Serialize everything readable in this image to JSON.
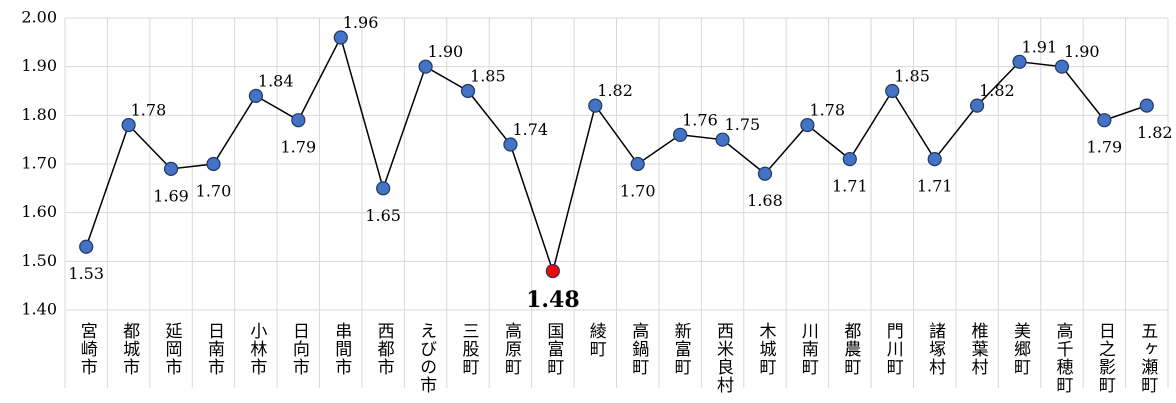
{
  "chart_data": {
    "type": "line",
    "categories": [
      "宮崎市",
      "都城市",
      "延岡市",
      "日南市",
      "小林市",
      "日向市",
      "串間市",
      "西都市",
      "えびの市",
      "三股町",
      "高原町",
      "国富町",
      "綾町",
      "高鍋町",
      "新富町",
      "西米良村",
      "木城町",
      "川南町",
      "都農町",
      "門川町",
      "諸塚村",
      "椎葉村",
      "美郷町",
      "高千穂町",
      "日之影町",
      "五ヶ瀬町"
    ],
    "series": [
      {
        "color": "#000000",
        "values": [
          1.53,
          1.78,
          1.69,
          1.7,
          1.84,
          1.79,
          1.96,
          1.65,
          1.9,
          1.85,
          1.74,
          1.48,
          1.82,
          1.7,
          1.76,
          1.75,
          1.68,
          1.78,
          1.71,
          1.85,
          1.71,
          1.82,
          1.91,
          1.9,
          1.79,
          1.82
        ],
        "value_labels": [
          "1.53",
          "1.78",
          "1.69",
          "1.70",
          "1.84",
          "1.79",
          "1.96",
          "1.65",
          "1.90",
          "1.85",
          "1.74",
          "1.48",
          "1.82",
          "1.70",
          "1.76",
          "1.75",
          "1.68",
          "1.78",
          "1.71",
          "1.85",
          "1.71",
          "1.82",
          "1.91",
          "1.90",
          "1.79",
          "1.82"
        ],
        "point_colors": [
          "#4472c4",
          "#4472c4",
          "#4472c4",
          "#4472c4",
          "#4472c4",
          "#4472c4",
          "#4472c4",
          "#4472c4",
          "#4472c4",
          "#4472c4",
          "#4472c4",
          "#ff0000",
          "#4472c4",
          "#4472c4",
          "#4472c4",
          "#4472c4",
          "#4472c4",
          "#4472c4",
          "#4472c4",
          "#4472c4",
          "#4472c4",
          "#4472c4",
          "#4472c4",
          "#4472c4",
          "#4472c4",
          "#4472c4"
        ]
      }
    ],
    "ylim": [
      1.4,
      2.0
    ],
    "yticks": [
      {
        "value": 1.4,
        "label": "1.40"
      },
      {
        "value": 1.5,
        "label": "1.50"
      },
      {
        "value": 1.6,
        "label": "1.60"
      },
      {
        "value": 1.7,
        "label": "1.70"
      },
      {
        "value": 1.8,
        "label": "1.80"
      },
      {
        "value": 1.9,
        "label": "1.90"
      },
      {
        "value": 2.0,
        "label": "2.00"
      }
    ],
    "grid": true
  }
}
